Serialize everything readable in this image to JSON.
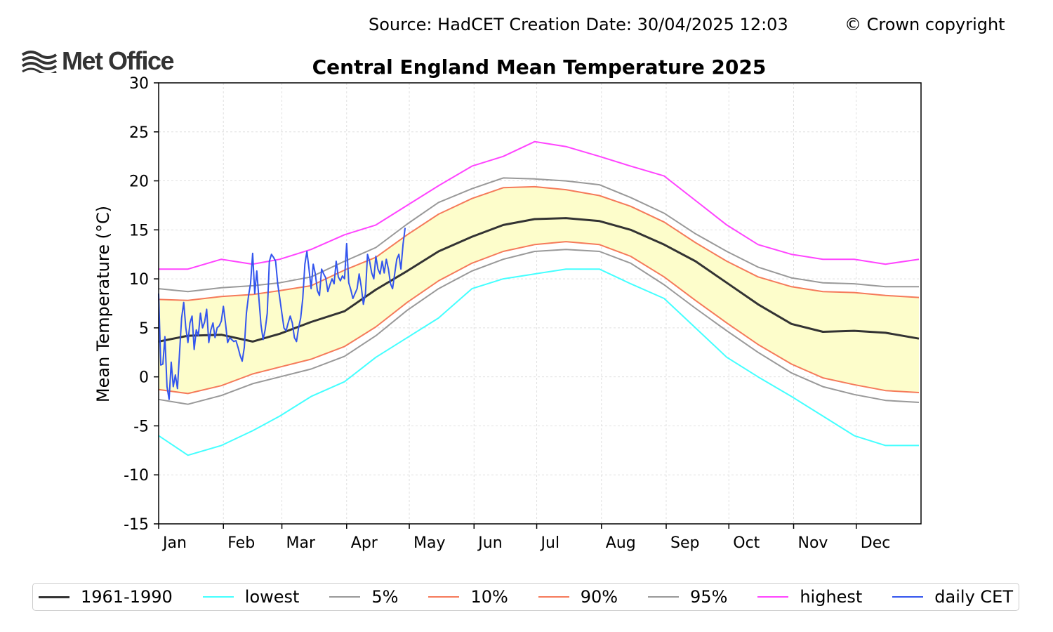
{
  "header": {
    "source_text": "Source: HadCET  Creation Date: 30/04/2025 12:03",
    "copyright_text": "© Crown copyright",
    "logo_text": "Met Office"
  },
  "colors": {
    "normal": "#333333",
    "lowest": "#44ffff",
    "p5": "#999999",
    "p10": "#f57a5a",
    "p90": "#f57a5a",
    "p95": "#999999",
    "highest": "#ff44ff",
    "daily": "#3355ee",
    "band": "#fdfdcb"
  },
  "chart_data": {
    "type": "line",
    "title": "Central England Mean Temperature 2025",
    "ylabel": "Mean Temperature (°C)",
    "xlabel": "",
    "ylim": [
      -15,
      30
    ],
    "yticks": [
      30,
      25,
      20,
      15,
      10,
      5,
      0,
      -5,
      -10,
      -15
    ],
    "xlim": [
      1,
      366
    ],
    "months": [
      {
        "label": "Jan",
        "start_day": 1
      },
      {
        "label": "Feb",
        "start_day": 32
      },
      {
        "label": "Mar",
        "start_day": 60
      },
      {
        "label": "Apr",
        "start_day": 91
      },
      {
        "label": "May",
        "start_day": 121
      },
      {
        "label": "Jun",
        "start_day": 152
      },
      {
        "label": "Jul",
        "start_day": 182
      },
      {
        "label": "Aug",
        "start_day": 213
      },
      {
        "label": "Sep",
        "start_day": 244
      },
      {
        "label": "Oct",
        "start_day": 274
      },
      {
        "label": "Nov",
        "start_day": 305
      },
      {
        "label": "Dec",
        "start_day": 335
      }
    ],
    "grid": true,
    "legend_position": "bottom",
    "shaded_band": "between 10% and 90%",
    "climatology_day": [
      1,
      15,
      31,
      46,
      59,
      74,
      90,
      105,
      120,
      135,
      151,
      166,
      181,
      196,
      212,
      227,
      243,
      258,
      273,
      288,
      304,
      319,
      334,
      349,
      365
    ],
    "series": [
      {
        "name": "1961-1990",
        "key": "normal",
        "width": 3,
        "values": [
          3.6,
          4.2,
          4.3,
          3.6,
          4.4,
          5.6,
          6.7,
          8.9,
          10.8,
          12.8,
          14.3,
          15.5,
          16.1,
          16.2,
          15.9,
          15.0,
          13.5,
          11.8,
          9.6,
          7.4,
          5.4,
          4.6,
          4.7,
          4.5,
          3.9
        ]
      },
      {
        "name": "lowest",
        "key": "lowest",
        "width": 2,
        "values": [
          -6.0,
          -8.0,
          -7.0,
          -5.5,
          -4.0,
          -2.0,
          -0.5,
          2.0,
          4.0,
          6.0,
          9.0,
          10.0,
          10.5,
          11.0,
          11.0,
          9.5,
          8.0,
          5.0,
          2.0,
          0.0,
          -2.0,
          -4.0,
          -6.0,
          -7.0,
          -7.0
        ]
      },
      {
        "name": "5%",
        "key": "p5",
        "width": 2,
        "values": [
          -2.3,
          -2.8,
          -1.9,
          -0.7,
          0.0,
          0.8,
          2.1,
          4.2,
          6.8,
          9.0,
          10.8,
          12.0,
          12.8,
          13.0,
          12.8,
          11.6,
          9.4,
          7.0,
          4.7,
          2.5,
          0.4,
          -1.0,
          -1.8,
          -2.4,
          -2.6
        ]
      },
      {
        "name": "10%",
        "key": "p10",
        "width": 2,
        "values": [
          -1.3,
          -1.7,
          -0.9,
          0.3,
          1.0,
          1.8,
          3.1,
          5.1,
          7.6,
          9.8,
          11.6,
          12.8,
          13.5,
          13.8,
          13.5,
          12.3,
          10.2,
          7.8,
          5.5,
          3.3,
          1.3,
          -0.1,
          -0.8,
          -1.4,
          -1.6
        ]
      },
      {
        "name": "90%",
        "key": "p90",
        "width": 2,
        "values": [
          7.9,
          7.8,
          8.2,
          8.4,
          8.8,
          9.3,
          10.9,
          12.2,
          14.5,
          16.6,
          18.2,
          19.3,
          19.4,
          19.1,
          18.5,
          17.4,
          15.8,
          13.7,
          11.8,
          10.2,
          9.2,
          8.7,
          8.6,
          8.3,
          8.1
        ]
      },
      {
        "name": "95%",
        "key": "p95",
        "width": 2,
        "values": [
          9.0,
          8.7,
          9.1,
          9.3,
          9.6,
          10.2,
          11.8,
          13.2,
          15.6,
          17.8,
          19.2,
          20.3,
          20.2,
          20.0,
          19.6,
          18.3,
          16.7,
          14.6,
          12.8,
          11.2,
          10.1,
          9.6,
          9.5,
          9.2,
          9.2
        ]
      },
      {
        "name": "highest",
        "key": "highest",
        "width": 2,
        "values": [
          11.0,
          11.0,
          12.0,
          11.5,
          12.0,
          13.0,
          14.5,
          15.5,
          17.5,
          19.5,
          21.5,
          22.5,
          24.0,
          23.5,
          22.5,
          21.5,
          20.5,
          18.0,
          15.5,
          13.5,
          12.5,
          12.0,
          12.0,
          11.5,
          12.0
        ]
      }
    ],
    "daily_cet": {
      "name": "daily CET",
      "key": "daily",
      "x": [
        1,
        2,
        3,
        4,
        5,
        6,
        7,
        8,
        9,
        10,
        11,
        12,
        13,
        14,
        15,
        16,
        17,
        18,
        19,
        20,
        21,
        22,
        23,
        24,
        25,
        26,
        27,
        28,
        29,
        30,
        31,
        32,
        33,
        34,
        35,
        36,
        37,
        38,
        39,
        40,
        41,
        42,
        43,
        44,
        45,
        46,
        47,
        48,
        49,
        50,
        51,
        52,
        53,
        54,
        55,
        56,
        57,
        58,
        59,
        60,
        61,
        62,
        63,
        64,
        65,
        66,
        67,
        68,
        69,
        70,
        71,
        72,
        73,
        74,
        75,
        76,
        77,
        78,
        79,
        80,
        81,
        82,
        83,
        84,
        85,
        86,
        87,
        88,
        89,
        90,
        91,
        92,
        93,
        94,
        95,
        96,
        97,
        98,
        99,
        100,
        101,
        102,
        103,
        104,
        105,
        106,
        107,
        108,
        109,
        110,
        111,
        112,
        113,
        114,
        115,
        116,
        117,
        118,
        119
      ],
      "values": [
        8.5,
        1.2,
        1.3,
        4.1,
        -1.0,
        -2.3,
        1.5,
        -1.0,
        0.2,
        -1.2,
        2.5,
        6.0,
        7.6,
        5.0,
        3.5,
        5.5,
        6.2,
        2.8,
        4.8,
        4.2,
        6.5,
        5.0,
        5.6,
        6.9,
        3.5,
        4.8,
        5.5,
        4.0,
        5.0,
        5.2,
        5.7,
        7.2,
        5.5,
        3.5,
        4.0,
        3.8,
        3.6,
        3.7,
        3.0,
        2.2,
        1.6,
        3.0,
        6.5,
        8.2,
        9.5,
        12.6,
        8.5,
        10.8,
        8.0,
        5.3,
        3.8,
        4.8,
        6.5,
        11.8,
        12.5,
        12.2,
        11.8,
        9.5,
        8.0,
        6.5,
        5.0,
        4.7,
        5.5,
        6.2,
        5.5,
        4.0,
        3.6,
        5.0,
        6.0,
        8.0,
        11.5,
        12.8,
        11.0,
        9.0,
        11.5,
        10.5,
        8.8,
        8.3,
        11.0,
        10.5,
        10.1,
        8.7,
        9.4,
        10.0,
        9.5,
        11.8,
        10.2,
        9.8,
        10.3,
        10.0,
        13.6,
        9.6,
        8.9,
        8.0,
        8.5,
        9.0,
        10.5,
        9.2,
        7.4,
        8.5,
        12.5,
        11.8,
        10.6,
        10.0,
        12.3,
        11.0,
        10.5,
        11.8,
        10.6,
        12.0,
        11.0,
        9.5,
        9.0,
        10.5,
        12.0,
        12.5,
        11.0,
        13.5,
        15.2
      ]
    }
  },
  "legend": [
    {
      "label": "1961-1990",
      "key": "normal",
      "width": 3
    },
    {
      "label": "lowest",
      "key": "lowest",
      "width": 2
    },
    {
      "label": "5%",
      "key": "p5",
      "width": 2
    },
    {
      "label": "10%",
      "key": "p10",
      "width": 2
    },
    {
      "label": "90%",
      "key": "p90",
      "width": 2
    },
    {
      "label": "95%",
      "key": "p95",
      "width": 2
    },
    {
      "label": "highest",
      "key": "highest",
      "width": 2
    },
    {
      "label": "daily CET",
      "key": "daily",
      "width": 2
    }
  ]
}
